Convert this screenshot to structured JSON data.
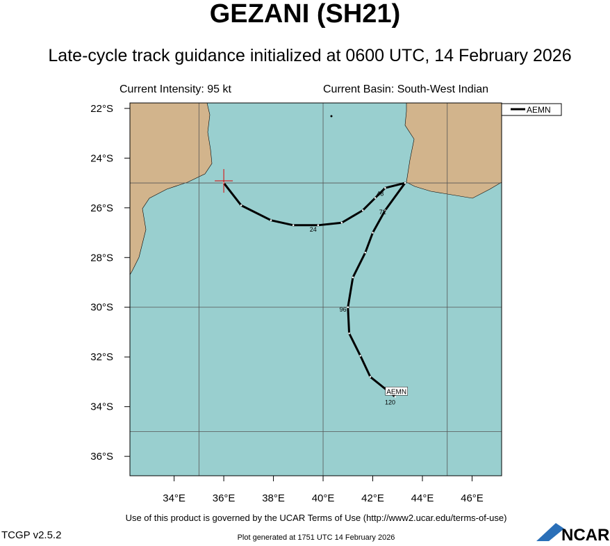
{
  "chart_data": {
    "type": "track_map",
    "title": "GEZANI (SH21)",
    "subtitle": "Late-cycle track guidance initialized at 0600 UTC, 14 February 2026",
    "intensity": "Current Intensity: 95 kt",
    "basin": "Current Basin: South-West Indian",
    "xlim": [
      32.22,
      47.19
    ],
    "ylim": [
      -36.78,
      -21.78
    ],
    "xticks": [
      {
        "value": 34,
        "label": "34°E"
      },
      {
        "value": 36,
        "label": "36°E"
      },
      {
        "value": 38,
        "label": "38°E"
      },
      {
        "value": 40,
        "label": "40°E"
      },
      {
        "value": 42,
        "label": "42°E"
      },
      {
        "value": 44,
        "label": "44°E"
      },
      {
        "value": 46,
        "label": "46°E"
      }
    ],
    "yticks": [
      {
        "value": -22,
        "label": "22°S"
      },
      {
        "value": -24,
        "label": "24°S"
      },
      {
        "value": -26,
        "label": "26°S"
      },
      {
        "value": -28,
        "label": "28°S"
      },
      {
        "value": -30,
        "label": "30°S"
      },
      {
        "value": -32,
        "label": "32°S"
      },
      {
        "value": -34,
        "label": "34°S"
      },
      {
        "value": -36,
        "label": "36°S"
      }
    ],
    "xgrid": [
      35,
      40,
      45
    ],
    "ygrid": [
      -25,
      -30,
      -35
    ],
    "series": [
      {
        "name": "AEMN",
        "color": "#000000",
        "x": [
          36.0,
          36.7,
          37.9,
          38.8,
          39.8,
          40.75,
          41.6,
          42.1,
          42.5,
          43.3,
          42.5,
          42.0,
          41.7,
          41.2,
          41.0,
          41.05,
          41.5,
          41.9,
          42.9
        ],
        "y": [
          -25.0,
          -25.9,
          -26.5,
          -26.7,
          -26.7,
          -26.6,
          -26.1,
          -25.6,
          -25.2,
          -25.0,
          -26.1,
          -27.0,
          -27.8,
          -28.8,
          -30.0,
          -31.05,
          -31.95,
          -32.8,
          -33.6
        ]
      }
    ],
    "tau_labels": [
      {
        "label": "24",
        "x": 39.6,
        "y": -26.85
      },
      {
        "label": "48",
        "x": 42.3,
        "y": -25.4
      },
      {
        "label": "72",
        "x": 42.4,
        "y": -26.15
      },
      {
        "label": "96",
        "x": 40.8,
        "y": -30.07
      },
      {
        "label": "120",
        "x": 42.7,
        "y": -33.8
      }
    ],
    "footer": "Use of this product is governed by the UCAR Terms of Use (http://www2.ucar.edu/terms-of-use)",
    "version": "TCGP v2.5.2",
    "generated": "Plot generated at 1751 UTC   14 February 2026",
    "logo": "NCAR"
  }
}
